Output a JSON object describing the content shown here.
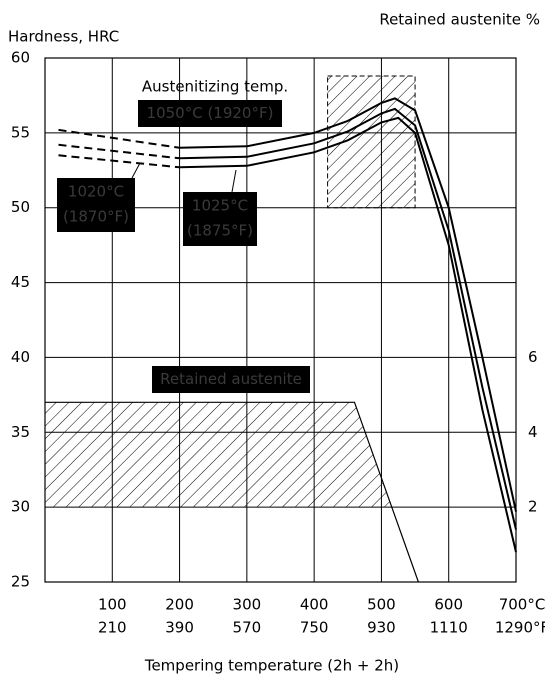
{
  "chart_data": {
    "type": "line",
    "y_label": "Hardness, HRC",
    "y2_label": "Retained austenite %",
    "x_label": "Tempering temperature (2h + 2h)",
    "xlim": [
      0,
      700
    ],
    "xticks": [
      100,
      200,
      300,
      400,
      500,
      600,
      {
        "value": 700,
        "label": "700°C"
      }
    ],
    "xticks_secondary": [
      "210",
      "390",
      "570",
      "750",
      "930",
      "1110",
      "1290°F"
    ],
    "ylim": [
      25,
      60
    ],
    "yticks": [
      25,
      30,
      35,
      40,
      45,
      50,
      55,
      60
    ],
    "y2lim": [
      0,
      14
    ],
    "y2ticks": [
      2,
      4,
      6
    ],
    "grid": true,
    "series": [
      {
        "color": "#000000",
        "dashed": true,
        "x": [
          20,
          200
        ],
        "values": [
          55.2,
          54.0
        ]
      },
      {
        "color": "#000000",
        "x": [
          200,
          300,
          400,
          450,
          500,
          520,
          550,
          600,
          650,
          700
        ],
        "values": [
          54.0,
          54.1,
          55.0,
          55.8,
          57.0,
          57.3,
          56.5,
          50,
          40,
          29.7
        ]
      },
      {
        "color": "#000000",
        "dashed": true,
        "x": [
          20,
          200
        ],
        "values": [
          54.2,
          53.3
        ]
      },
      {
        "color": "#000000",
        "x": [
          200,
          300,
          400,
          450,
          500,
          520,
          550,
          600,
          650,
          700
        ],
        "values": [
          53.3,
          53.4,
          54.3,
          55.1,
          56.3,
          56.6,
          55.5,
          48.5,
          38,
          28.5
        ]
      },
      {
        "color": "#000000",
        "dashed": true,
        "x": [
          20,
          200
        ],
        "values": [
          53.5,
          52.7
        ]
      },
      {
        "color": "#000000",
        "x": [
          200,
          300,
          400,
          450,
          500,
          525,
          550,
          600,
          650,
          700
        ],
        "values": [
          52.7,
          52.8,
          53.7,
          54.5,
          55.7,
          56.0,
          55,
          47.5,
          36.5,
          27
        ]
      },
      {
        "color": "#000000",
        "axis": "y2",
        "hatch": true,
        "x": [
          0,
          460,
          555
        ],
        "values": [
          4.8,
          4.8,
          0
        ]
      }
    ],
    "hatched_regions": [
      {
        "x": [
          420,
          550
        ],
        "y": [
          50,
          58.8
        ]
      }
    ],
    "annotations": [
      {
        "text": "Austenitizing temp."
      },
      {
        "text": "1050°C (1920°F)"
      },
      {
        "text": [
          "1020°C",
          "(1870°F)"
        ]
      },
      {
        "text": [
          "1025°C",
          "(1875°F)"
        ]
      },
      {
        "text": "Retained austenite"
      }
    ]
  }
}
